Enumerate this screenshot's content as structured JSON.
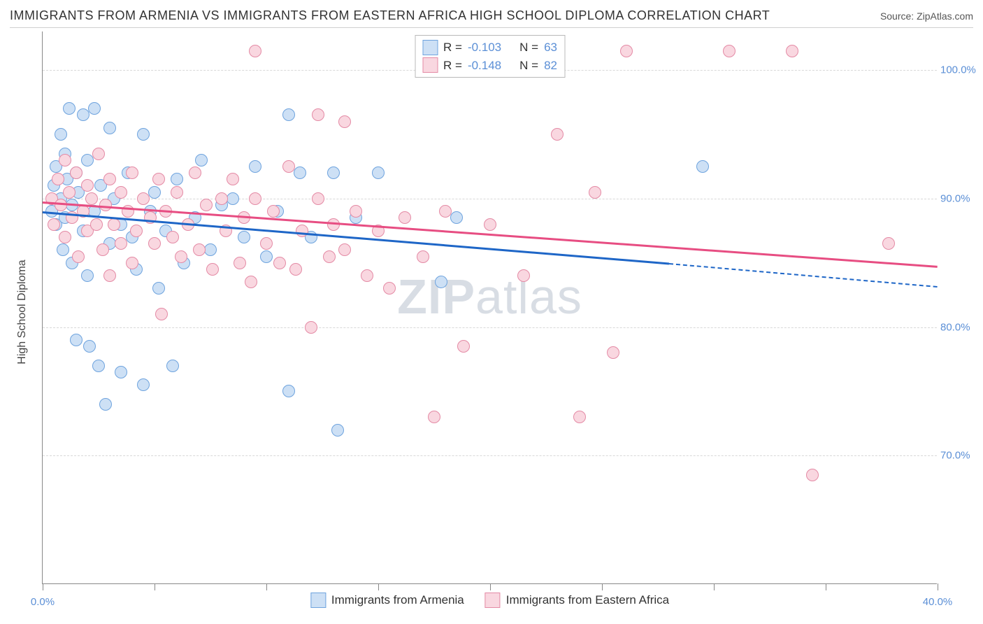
{
  "title": "IMMIGRANTS FROM ARMENIA VS IMMIGRANTS FROM EASTERN AFRICA HIGH SCHOOL DIPLOMA CORRELATION CHART",
  "source_label": "Source: ZipAtlas.com",
  "watermark_a": "ZIP",
  "watermark_b": "atlas",
  "chart": {
    "type": "scatter",
    "y_axis_title": "High School Diploma",
    "xlim": [
      0,
      40
    ],
    "ylim": [
      60,
      103
    ],
    "x_ticks": [
      0,
      5,
      10,
      15,
      20,
      25,
      30,
      35,
      40
    ],
    "x_tick_labels": {
      "0": "0.0%",
      "40": "40.0%"
    },
    "y_ticks": [
      70,
      80,
      90,
      100
    ],
    "y_tick_labels": [
      "70.0%",
      "80.0%",
      "90.0%",
      "100.0%"
    ],
    "background_color": "#ffffff",
    "grid_color": "#d8d8d8",
    "axis_color": "#888888",
    "tick_label_color": "#5b8fd6",
    "marker_radius": 9,
    "series": [
      {
        "id": "armenia",
        "label": "Immigrants from Armenia",
        "fill_color": "#cde0f5",
        "stroke_color": "#6ea3de",
        "line_color": "#1e66c7",
        "R": "-0.103",
        "N": "63",
        "trend": {
          "x1": 0,
          "y1": 89.0,
          "x2": 28.0,
          "y2": 85.0,
          "dash_to_x": 40,
          "dash_to_y": 83.2
        },
        "points": [
          [
            0.4,
            89.0
          ],
          [
            0.5,
            91.0
          ],
          [
            0.6,
            92.5
          ],
          [
            0.6,
            88.0
          ],
          [
            0.8,
            95.0
          ],
          [
            0.8,
            90.0
          ],
          [
            0.9,
            86.0
          ],
          [
            1.0,
            93.5
          ],
          [
            1.0,
            88.5
          ],
          [
            1.1,
            91.5
          ],
          [
            1.2,
            97.0
          ],
          [
            1.3,
            85.0
          ],
          [
            1.3,
            89.5
          ],
          [
            1.5,
            92.0
          ],
          [
            1.5,
            79.0
          ],
          [
            1.6,
            90.5
          ],
          [
            1.8,
            96.5
          ],
          [
            1.8,
            87.5
          ],
          [
            2.0,
            93.0
          ],
          [
            2.0,
            84.0
          ],
          [
            2.1,
            78.5
          ],
          [
            2.3,
            97.0
          ],
          [
            2.3,
            89.0
          ],
          [
            2.5,
            77.0
          ],
          [
            2.6,
            91.0
          ],
          [
            2.8,
            74.0
          ],
          [
            3.0,
            95.5
          ],
          [
            3.0,
            86.5
          ],
          [
            3.2,
            90.0
          ],
          [
            3.5,
            88.0
          ],
          [
            3.5,
            76.5
          ],
          [
            3.8,
            92.0
          ],
          [
            4.0,
            87.0
          ],
          [
            4.2,
            84.5
          ],
          [
            4.5,
            75.5
          ],
          [
            4.5,
            95.0
          ],
          [
            4.8,
            89.0
          ],
          [
            5.0,
            90.5
          ],
          [
            5.2,
            83.0
          ],
          [
            5.5,
            87.5
          ],
          [
            5.8,
            77.0
          ],
          [
            6.0,
            91.5
          ],
          [
            6.3,
            85.0
          ],
          [
            6.8,
            88.5
          ],
          [
            7.1,
            93.0
          ],
          [
            7.5,
            86.0
          ],
          [
            8.0,
            89.5
          ],
          [
            8.5,
            90.0
          ],
          [
            9.0,
            87.0
          ],
          [
            9.5,
            92.5
          ],
          [
            10.0,
            85.5
          ],
          [
            10.5,
            89.0
          ],
          [
            11.0,
            96.5
          ],
          [
            11.0,
            75.0
          ],
          [
            11.5,
            92.0
          ],
          [
            12.0,
            87.0
          ],
          [
            13.0,
            92.0
          ],
          [
            13.2,
            72.0
          ],
          [
            14.0,
            88.5
          ],
          [
            15.0,
            92.0
          ],
          [
            17.8,
            83.5
          ],
          [
            18.5,
            88.5
          ],
          [
            29.5,
            92.5
          ]
        ]
      },
      {
        "id": "eastern_africa",
        "label": "Immigrants from Eastern Africa",
        "fill_color": "#f9d7e0",
        "stroke_color": "#e48aa5",
        "line_color": "#e74d82",
        "R": "-0.148",
        "N": "82",
        "trend": {
          "x1": 0,
          "y1": 89.8,
          "x2": 40,
          "y2": 84.8
        },
        "points": [
          [
            0.4,
            90.0
          ],
          [
            0.5,
            88.0
          ],
          [
            0.7,
            91.5
          ],
          [
            0.8,
            89.5
          ],
          [
            1.0,
            93.0
          ],
          [
            1.0,
            87.0
          ],
          [
            1.2,
            90.5
          ],
          [
            1.3,
            88.5
          ],
          [
            1.5,
            92.0
          ],
          [
            1.6,
            85.5
          ],
          [
            1.8,
            89.0
          ],
          [
            2.0,
            91.0
          ],
          [
            2.0,
            87.5
          ],
          [
            2.2,
            90.0
          ],
          [
            2.4,
            88.0
          ],
          [
            2.5,
            93.5
          ],
          [
            2.7,
            86.0
          ],
          [
            2.8,
            89.5
          ],
          [
            3.0,
            91.5
          ],
          [
            3.0,
            84.0
          ],
          [
            3.2,
            88.0
          ],
          [
            3.5,
            90.5
          ],
          [
            3.5,
            86.5
          ],
          [
            3.8,
            89.0
          ],
          [
            4.0,
            92.0
          ],
          [
            4.0,
            85.0
          ],
          [
            4.2,
            87.5
          ],
          [
            4.5,
            90.0
          ],
          [
            4.8,
            88.5
          ],
          [
            5.0,
            86.5
          ],
          [
            5.2,
            91.5
          ],
          [
            5.3,
            81.0
          ],
          [
            5.5,
            89.0
          ],
          [
            5.8,
            87.0
          ],
          [
            6.0,
            90.5
          ],
          [
            6.2,
            85.5
          ],
          [
            6.5,
            88.0
          ],
          [
            6.8,
            92.0
          ],
          [
            7.0,
            86.0
          ],
          [
            7.3,
            89.5
          ],
          [
            7.6,
            84.5
          ],
          [
            8.0,
            90.0
          ],
          [
            8.2,
            87.5
          ],
          [
            8.5,
            91.5
          ],
          [
            8.8,
            85.0
          ],
          [
            9.0,
            88.5
          ],
          [
            9.3,
            83.5
          ],
          [
            9.5,
            90.0
          ],
          [
            9.5,
            101.5
          ],
          [
            10.0,
            86.5
          ],
          [
            10.3,
            89.0
          ],
          [
            10.6,
            85.0
          ],
          [
            11.0,
            92.5
          ],
          [
            11.3,
            84.5
          ],
          [
            11.6,
            87.5
          ],
          [
            12.0,
            80.0
          ],
          [
            12.3,
            90.0
          ],
          [
            12.3,
            96.5
          ],
          [
            12.8,
            85.5
          ],
          [
            13.0,
            88.0
          ],
          [
            13.5,
            96.0
          ],
          [
            13.5,
            86.0
          ],
          [
            14.0,
            89.0
          ],
          [
            14.5,
            84.0
          ],
          [
            15.0,
            87.5
          ],
          [
            15.5,
            83.0
          ],
          [
            16.2,
            88.5
          ],
          [
            17.0,
            85.5
          ],
          [
            17.5,
            73.0
          ],
          [
            18.0,
            89.0
          ],
          [
            18.8,
            78.5
          ],
          [
            20.0,
            88.0
          ],
          [
            21.5,
            84.0
          ],
          [
            23.0,
            95.0
          ],
          [
            24.0,
            73.0
          ],
          [
            24.7,
            90.5
          ],
          [
            25.5,
            78.0
          ],
          [
            26.1,
            101.5
          ],
          [
            30.7,
            101.5
          ],
          [
            33.5,
            101.5
          ],
          [
            34.4,
            68.5
          ],
          [
            37.8,
            86.5
          ]
        ]
      }
    ]
  },
  "stats_box": {
    "R_label": "R =",
    "N_label": "N ="
  }
}
